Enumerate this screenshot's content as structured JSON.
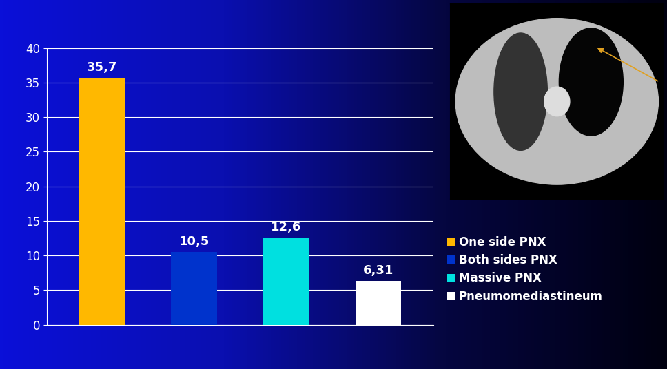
{
  "chart_data": {
    "type": "bar",
    "categories": [
      "One side PNX",
      "Both sides PNX",
      "Massive PNX",
      "Pneumomediastineum"
    ],
    "values": [
      35.7,
      10.5,
      12.6,
      6.31
    ],
    "value_labels": [
      "35,7",
      "10,5",
      "12,6",
      "6,31"
    ],
    "colors": [
      "#ffb800",
      "#0033cc",
      "#00e0e0",
      "#ffffff"
    ],
    "ylim": [
      0,
      40
    ],
    "yticks": [
      0,
      5,
      10,
      15,
      20,
      25,
      30,
      35,
      40
    ],
    "grid": true,
    "data_labels": true,
    "tick_labels": "y",
    "legend": "right"
  }
}
